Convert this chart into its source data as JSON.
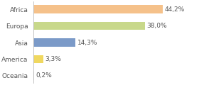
{
  "categories": [
    "Africa",
    "Europa",
    "Asia",
    "America",
    "Oceania"
  ],
  "values": [
    44.2,
    38.0,
    14.3,
    3.3,
    0.2
  ],
  "labels": [
    "44,2%",
    "38,0%",
    "14,3%",
    "3,3%",
    "0,2%"
  ],
  "bar_colors": [
    "#f5c18a",
    "#c8d88a",
    "#7b9ac8",
    "#f0d860",
    "#cccccc"
  ],
  "background_color": "#ffffff",
  "text_color": "#555555",
  "label_fontsize": 6.5,
  "ytick_fontsize": 6.5,
  "bar_height": 0.5,
  "xlim": [
    0,
    56
  ],
  "figsize": [
    2.8,
    1.2
  ],
  "dpi": 100
}
